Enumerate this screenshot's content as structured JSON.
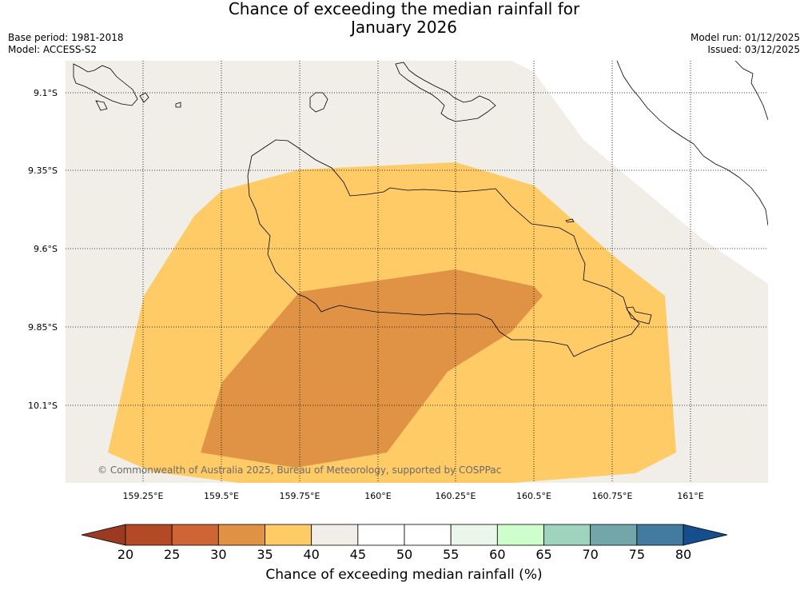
{
  "title_line1": "Chance of exceeding the median rainfall for",
  "title_line2": "January 2026",
  "meta": {
    "base_period": "Base period: 1981-2018",
    "model": "Model: ACCESS-S2",
    "model_run": "Model run: 01/12/2025",
    "issued": "Issued: 03/12/2025"
  },
  "copyright": "© Commonwealth of Australia 2025, Bureau of Meteorology, supported by COSPPac",
  "lat_labels": [
    "9.1°S",
    "9.35°S",
    "9.6°S",
    "9.85°S",
    "10.1°S"
  ],
  "lon_labels": [
    "159.25°E",
    "159.5°E",
    "159.75°E",
    "160°E",
    "160.25°E",
    "160.5°E",
    "160.75°E",
    "161°E"
  ],
  "colorbar": {
    "title": "Chance of exceeding median rainfall (%)",
    "ticks": [
      "20",
      "25",
      "30",
      "35",
      "40",
      "45",
      "50",
      "55",
      "60",
      "65",
      "70",
      "75",
      "80"
    ],
    "colors": [
      "#b34a25",
      "#cf6434",
      "#e19345",
      "#fecb66",
      "#f1ede7",
      "#ffffff",
      "#ffffff",
      "#eaf6ea",
      "#ccffcc",
      "#9ed3bd",
      "#72a6a8",
      "#427b9d"
    ],
    "under_color": "#9a3a20",
    "over_color": "#144e8c"
  },
  "legend_categories": {
    "30-35": "#e19345",
    "35-40": "#fecb66",
    "40-45": "#f1ede7"
  }
}
